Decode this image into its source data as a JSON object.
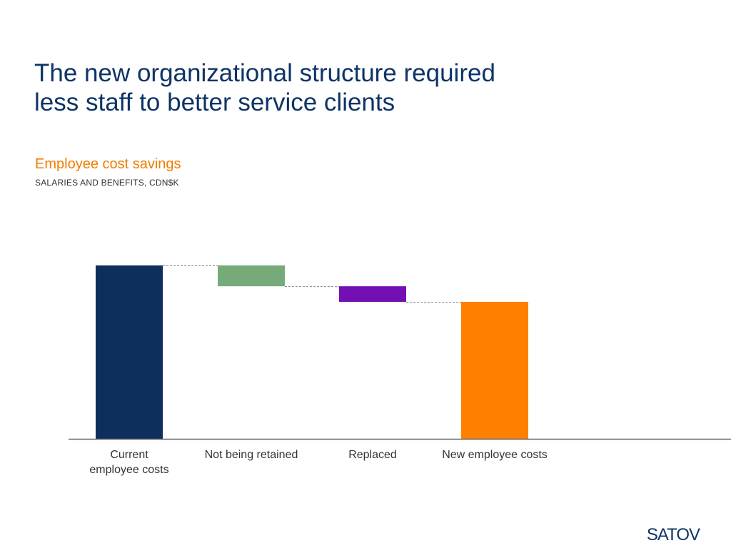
{
  "slide": {
    "title_line1": "The new organizational structure required",
    "title_line2": "less staff to better service clients",
    "subtitle": "Employee cost savings",
    "units": "SALARIES AND BENEFITS, CDN$K",
    "brand": "SATOV"
  },
  "chart_data": {
    "type": "waterfall",
    "title": "Employee cost savings",
    "ylabel": "SALARIES AND BENEFITS, CDN$K",
    "categories": [
      "Current\nemployee costs",
      "Not being retained",
      "Replaced",
      "New employee costs"
    ],
    "steps": [
      {
        "label": "Current\nemployee costs",
        "kind": "total",
        "value": 100,
        "color": "#0e2f5c"
      },
      {
        "label": "Not being retained",
        "kind": "delta",
        "value": -12,
        "color": "#76ab79"
      },
      {
        "label": "Replaced",
        "kind": "delta",
        "value": -9,
        "color": "#7310b4"
      },
      {
        "label": "New employee costs",
        "kind": "total",
        "value": 79,
        "color": "#ff7f00"
      }
    ],
    "ylim": [
      0,
      100
    ],
    "connectors": true,
    "connector_color": "#888888",
    "axis_color": "#666666",
    "grid": false,
    "data_labels": false
  }
}
